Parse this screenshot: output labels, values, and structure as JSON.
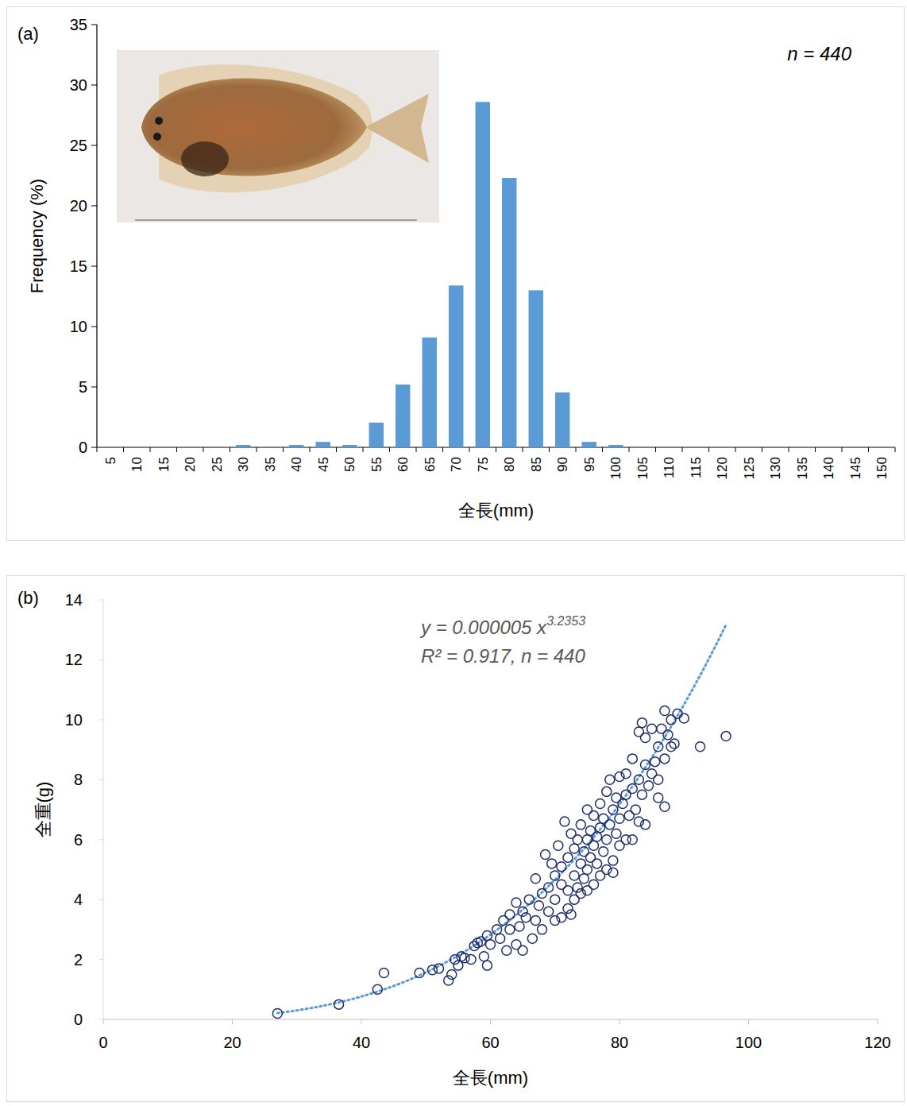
{
  "chart_data": [
    {
      "type": "bar",
      "panel_label": "(a)",
      "annotation": "n = 440",
      "x_label": "全長(mm)",
      "y_label": "Frequency (%)",
      "color": "#5b9bd5",
      "categories": [
        "5",
        "10",
        "15",
        "20",
        "25",
        "30",
        "35",
        "40",
        "45",
        "50",
        "55",
        "60",
        "65",
        "70",
        "75",
        "80",
        "85",
        "90",
        "95",
        "100",
        "105",
        "110",
        "115",
        "120",
        "125",
        "130",
        "135",
        "140",
        "145",
        "150"
      ],
      "values": [
        0,
        0,
        0,
        0,
        0,
        0.2,
        0,
        0.2,
        0.45,
        0.2,
        2.05,
        5.2,
        9.1,
        13.4,
        28.6,
        22.3,
        13.0,
        4.55,
        0.45,
        0.2,
        0,
        0,
        0,
        0,
        0,
        0,
        0,
        0,
        0,
        0
      ],
      "ylim": [
        0,
        35
      ],
      "yticks": [
        0,
        5,
        10,
        15,
        20,
        25,
        30,
        35
      ],
      "grid": false
    },
    {
      "type": "scatter",
      "panel_label": "(b)",
      "x_label": "全長(mm)",
      "y_label": "全重(g)",
      "equation": "y = 0.000005 x",
      "equation_exponent": "3.2353",
      "stats": "R² = 0.917, n = 440",
      "color": "#1f2d6b",
      "marker": "open-circle",
      "trendline": {
        "a": 5e-06,
        "b": 3.2353,
        "x_range": [
          27,
          96.5
        ],
        "color": "#5b9bd5",
        "line_style": "dotted"
      },
      "x": [
        27,
        36.5,
        42.5,
        43.5,
        49,
        51,
        52,
        53.5,
        54,
        54.5,
        55,
        55.5,
        56,
        57,
        57.5,
        58,
        58.5,
        59,
        59.5,
        59.5,
        60,
        61,
        61.5,
        62,
        62.5,
        63,
        63,
        64,
        64,
        64.5,
        65,
        65,
        65.5,
        66,
        66.5,
        67,
        67,
        67.5,
        68,
        68,
        68.5,
        69,
        69,
        69.5,
        70,
        70,
        70,
        70.5,
        71,
        71,
        71,
        71.5,
        72,
        72,
        72,
        72.5,
        72.5,
        73,
        73,
        73,
        73.5,
        73.5,
        74,
        74,
        74,
        74.5,
        74.5,
        75,
        75,
        75,
        75,
        75.5,
        75.5,
        76,
        76,
        76,
        76.5,
        76.5,
        77,
        77,
        77,
        77.5,
        77.5,
        78,
        78,
        78,
        78.5,
        78.5,
        79,
        79,
        79,
        79.5,
        79.5,
        80,
        80,
        80,
        80.5,
        81,
        81,
        81,
        81.5,
        82,
        82,
        82,
        82.5,
        83,
        83,
        83,
        83.5,
        83.5,
        84,
        84,
        84,
        84.5,
        85,
        85,
        85.5,
        86,
        86,
        86,
        86.5,
        87,
        87,
        87,
        87.5,
        88,
        88,
        88.5,
        89,
        90,
        92.5,
        96.5
      ],
      "values": [
        0.2,
        0.5,
        1.0,
        1.55,
        1.55,
        1.65,
        1.7,
        1.3,
        1.5,
        2.0,
        1.8,
        2.1,
        2.05,
        2.0,
        2.45,
        2.55,
        2.6,
        2.1,
        1.8,
        2.8,
        2.5,
        3.0,
        2.7,
        3.3,
        2.3,
        3.5,
        3.0,
        2.5,
        3.9,
        3.1,
        2.3,
        3.6,
        3.4,
        4.0,
        2.7,
        3.3,
        4.7,
        3.8,
        4.2,
        3.0,
        5.5,
        3.6,
        4.4,
        5.2,
        3.3,
        4.0,
        4.8,
        5.8,
        3.4,
        4.5,
        5.1,
        6.6,
        3.7,
        4.3,
        5.4,
        3.5,
        6.2,
        4.0,
        4.8,
        5.7,
        4.4,
        6.0,
        4.2,
        5.2,
        6.5,
        4.7,
        5.6,
        4.3,
        5.0,
        6.0,
        7.0,
        5.4,
        6.3,
        4.5,
        5.8,
        6.8,
        5.2,
        6.1,
        4.8,
        6.4,
        7.2,
        5.6,
        6.7,
        5.0,
        6.0,
        7.6,
        6.5,
        8.0,
        5.3,
        4.9,
        7.0,
        6.2,
        7.4,
        5.8,
        6.7,
        8.1,
        7.2,
        6.0,
        7.5,
        8.2,
        6.8,
        6.0,
        7.7,
        8.7,
        7.0,
        6.6,
        8.0,
        9.6,
        7.5,
        9.9,
        6.5,
        8.5,
        9.4,
        7.8,
        8.2,
        9.7,
        8.6,
        7.4,
        9.1,
        8.0,
        9.7,
        7.1,
        8.7,
        10.3,
        9.5,
        9.1,
        10.0,
        9.2,
        10.2,
        10.05,
        9.1,
        9.45
      ],
      "xlim": [
        0,
        120
      ],
      "xticks": [
        0,
        20,
        40,
        60,
        80,
        100,
        120
      ],
      "ylim": [
        0,
        14
      ],
      "yticks": [
        0,
        2,
        4,
        6,
        8,
        10,
        12,
        14
      ],
      "grid": false
    }
  ]
}
